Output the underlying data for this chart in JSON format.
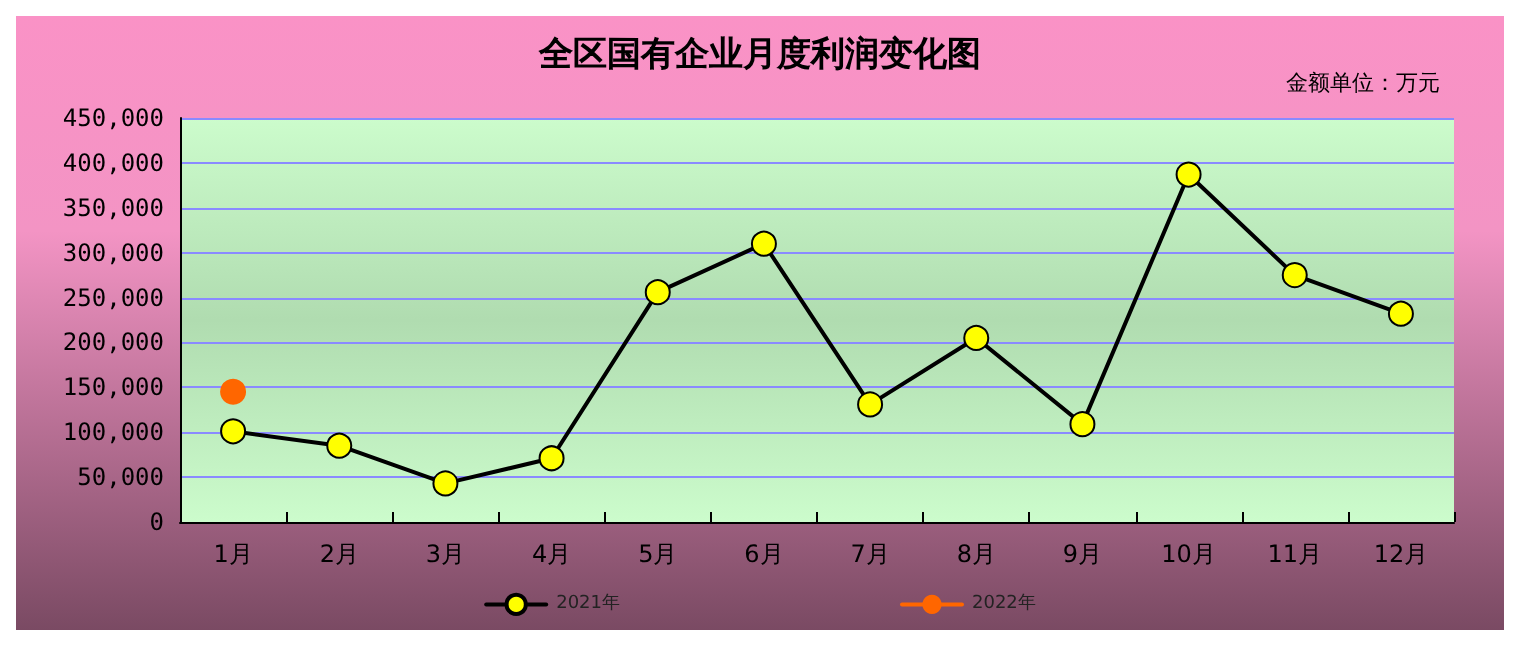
{
  "chart_data": {
    "type": "line",
    "title": "全区国有企业月度利润变化图",
    "annotations": [
      "金额单位：万元"
    ],
    "categories": [
      "1月",
      "2月",
      "3月",
      "4月",
      "5月",
      "6月",
      "7月",
      "8月",
      "9月",
      "10月",
      "11月",
      "12月"
    ],
    "series": [
      {
        "name": "2021年",
        "color": "#ffff00",
        "values": [
          101000,
          85000,
          43000,
          71000,
          256000,
          310000,
          131000,
          205000,
          109000,
          387000,
          275000,
          232000
        ]
      },
      {
        "name": "2022年",
        "color": "#ff6600",
        "values": [
          145000,
          null,
          null,
          null,
          null,
          null,
          null,
          null,
          null,
          null,
          null,
          null
        ]
      }
    ],
    "ylim": [
      0,
      450000
    ],
    "yticks": [
      0,
      {
        "value": 50000,
        "label": "50,000"
      },
      {
        "value": 100000,
        "label": "100,000"
      },
      {
        "value": 150000,
        "label": "150,000"
      },
      {
        "value": 200000,
        "label": "200,000"
      },
      {
        "value": 250000,
        "label": "250,000"
      },
      {
        "value": 300000,
        "label": "300,000"
      },
      {
        "value": 350000,
        "label": "350,000"
      },
      {
        "value": 400000,
        "label": "400,000"
      },
      {
        "value": 450000,
        "label": "450,000"
      }
    ],
    "grid": "y",
    "legend": "bottom",
    "marker": "circle",
    "line_style": "solid"
  }
}
